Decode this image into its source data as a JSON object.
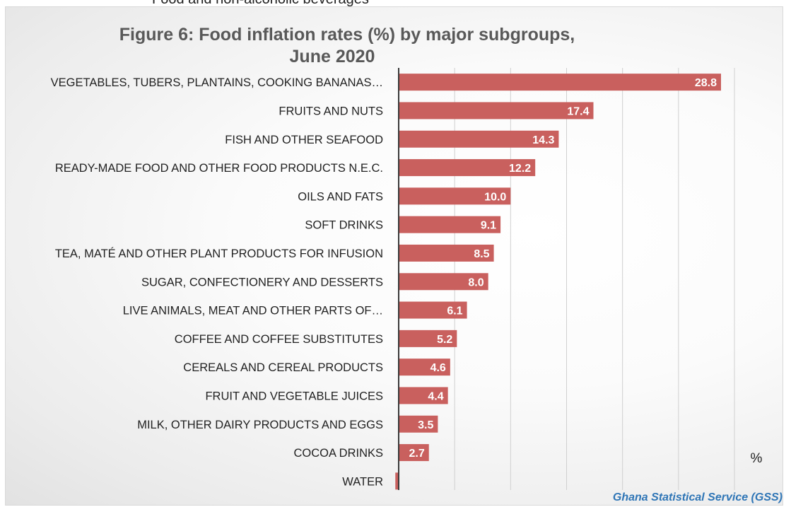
{
  "header": {
    "caption": "Food and non-alcoholic beverages"
  },
  "chart_data": {
    "type": "bar",
    "orientation": "horizontal",
    "title_line1": "Figure 6: Food inflation rates (%) by  major subgroups,",
    "title_line2": "June  2020",
    "unit_label": "%",
    "source": "Ghana Statistical Service (GSS)",
    "categories": [
      "VEGETABLES, TUBERS, PLANTAINS, COOKING BANANAS…",
      "FRUITS AND NUTS",
      "FISH AND OTHER SEAFOOD",
      "READY-MADE FOOD AND OTHER FOOD PRODUCTS N.E.C.",
      "OILS AND FATS",
      "SOFT DRINKS",
      "TEA, MATÉ AND OTHER PLANT PRODUCTS FOR INFUSION",
      "SUGAR, CONFECTIONERY AND DESSERTS",
      "LIVE ANIMALS, MEAT AND OTHER PARTS OF…",
      "COFFEE AND COFFEE SUBSTITUTES",
      "CEREALS AND CEREAL PRODUCTS",
      "FRUIT AND VEGETABLE JUICES",
      "MILK, OTHER DAIRY PRODUCTS AND EGGS",
      "COCOA DRINKS",
      "WATER"
    ],
    "values": [
      28.8,
      17.4,
      14.3,
      12.2,
      10.0,
      9.1,
      8.5,
      8.0,
      6.1,
      5.2,
      4.6,
      4.4,
      3.5,
      2.7,
      -0.3
    ],
    "value_labels": [
      "28.8",
      "17.4",
      "14.3",
      "12.2",
      "10.0",
      "9.1",
      "8.5",
      "8.0",
      "6.1",
      "5.2",
      "4.6",
      "4.4",
      "3.5",
      "2.7",
      ""
    ],
    "xlim": [
      0,
      30
    ],
    "grid": true,
    "legend": "none",
    "bar_color": "#c9605e",
    "source_color": "#2e75b6"
  }
}
